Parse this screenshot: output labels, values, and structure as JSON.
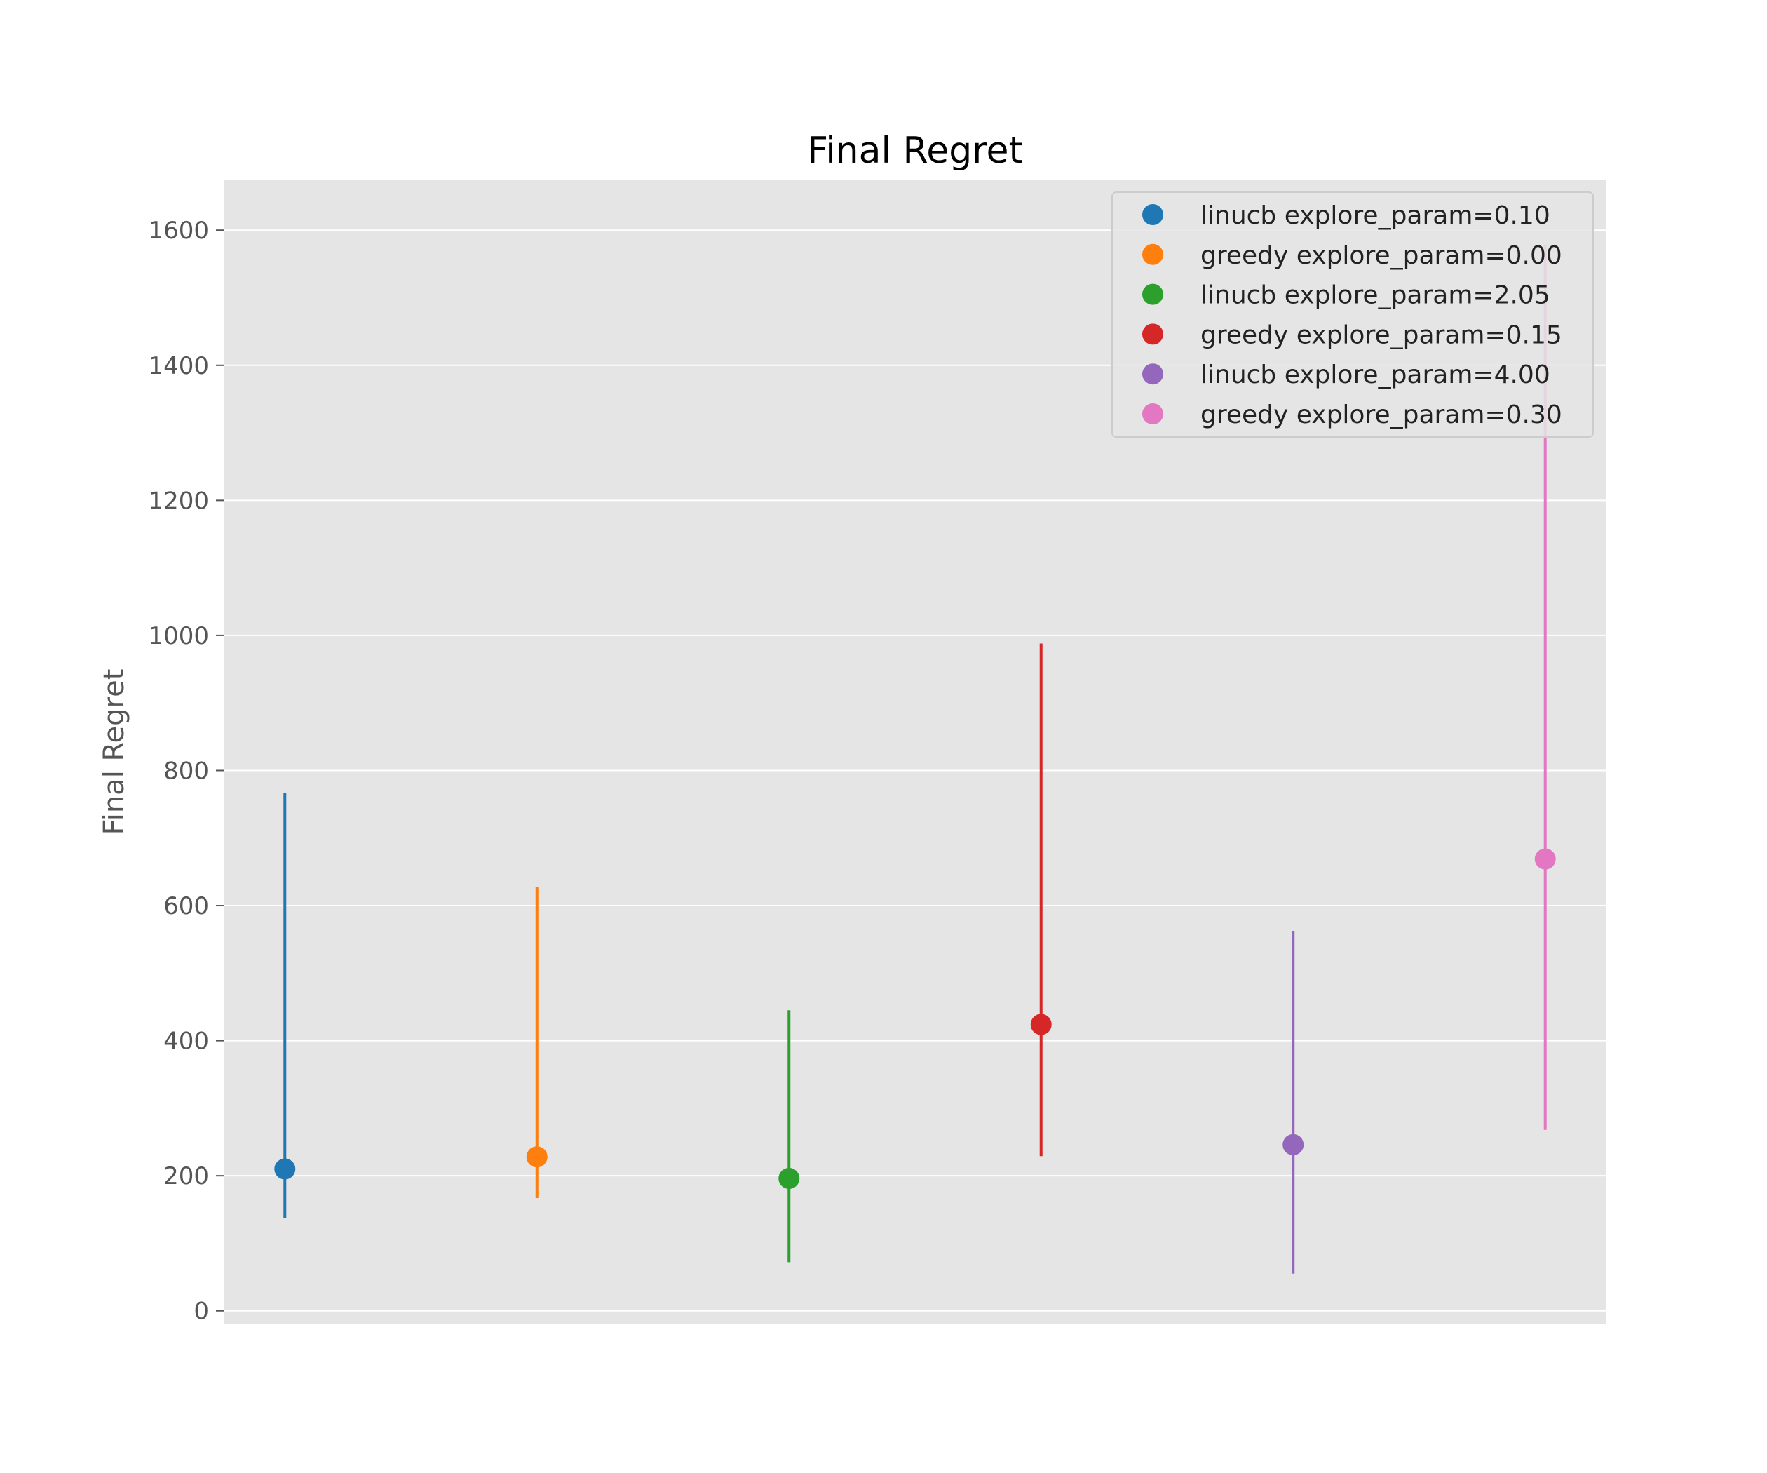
{
  "chart_data": {
    "type": "scatter",
    "title": "Final Regret",
    "xlabel": "",
    "ylabel": "Final Regret",
    "ylim": [
      -20,
      1675
    ],
    "yticks": [
      0,
      200,
      400,
      600,
      800,
      1000,
      1200,
      1400,
      1600
    ],
    "grid": true,
    "legend_position": "top-right",
    "series": [
      {
        "name": "linucb explore_param=0.10",
        "color": "#1f77b4",
        "x": 0,
        "y": 210,
        "err_low": 137,
        "err_high": 767
      },
      {
        "name": "greedy explore_param=0.00",
        "color": "#ff7f0e",
        "x": 1,
        "y": 228,
        "err_low": 167,
        "err_high": 627
      },
      {
        "name": "linucb explore_param=2.05",
        "color": "#2ca02c",
        "x": 2,
        "y": 196,
        "err_low": 72,
        "err_high": 445
      },
      {
        "name": "greedy explore_param=0.15",
        "color": "#d62728",
        "x": 3,
        "y": 424,
        "err_low": 229,
        "err_high": 988
      },
      {
        "name": "linucb explore_param=4.00",
        "color": "#9467bd",
        "x": 4,
        "y": 246,
        "err_low": 55,
        "err_high": 562
      },
      {
        "name": "greedy explore_param=0.30",
        "color": "#e377c2",
        "x": 5,
        "y": 669,
        "err_low": 268,
        "err_high": 1578
      }
    ],
    "xlim": [
      -0.24,
      5.24
    ]
  }
}
